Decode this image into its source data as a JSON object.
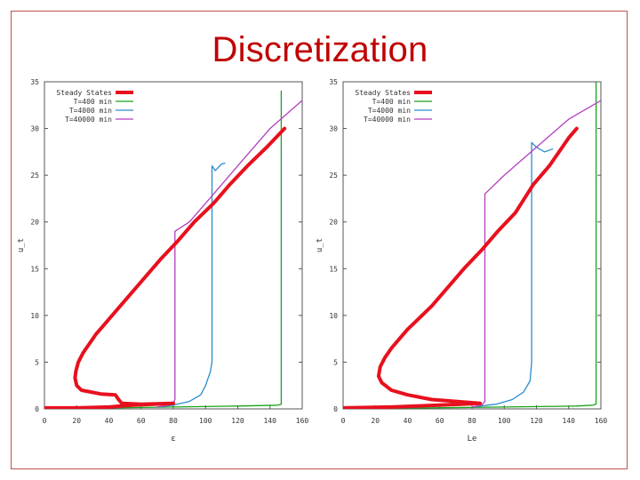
{
  "slide": {
    "title": "Discretization"
  },
  "colors": {
    "steady": "#e8101e",
    "t400": "#1aa21a",
    "t4000": "#2a8ccf",
    "t40000": "#b43fbf",
    "frame": "#c0504d",
    "title": "#c00000"
  },
  "chart_data": [
    {
      "type": "line",
      "xlabel": "ε",
      "ylabel": "u_t",
      "xlim": [
        0,
        160
      ],
      "ylim": [
        0,
        35
      ],
      "x_ticks": [
        "0",
        "20",
        "40",
        "60",
        "80",
        "100",
        "120",
        "140",
        "160"
      ],
      "y_ticks": [
        "0",
        "5",
        "10",
        "15",
        "20",
        "25",
        "30",
        "35"
      ],
      "grid": false,
      "legend": "top-left",
      "series": [
        {
          "name": "Steady States",
          "color": "#e8101e",
          "width": 4,
          "points": [
            [
              0,
              0.1
            ],
            [
              20,
              0.1
            ],
            [
              40,
              0.2
            ],
            [
              55,
              0.4
            ],
            [
              80,
              0.6
            ],
            [
              60,
              0.5
            ],
            [
              48,
              0.6
            ],
            [
              46,
              1.0
            ],
            [
              44,
              1.5
            ],
            [
              35,
              1.6
            ],
            [
              23,
              2.0
            ],
            [
              20,
              2.5
            ],
            [
              19,
              3.3
            ],
            [
              19.5,
              4.0
            ],
            [
              21,
              5.0
            ],
            [
              24,
              6.0
            ],
            [
              28,
              7.0
            ],
            [
              32,
              8.0
            ],
            [
              37,
              9.0
            ],
            [
              42,
              10.0
            ],
            [
              52,
              12.0
            ],
            [
              62,
              14.0
            ],
            [
              72,
              16.0
            ],
            [
              83,
              18.0
            ],
            [
              93,
              20.0
            ],
            [
              105,
              22.0
            ],
            [
              115,
              24.0
            ],
            [
              126,
              26.0
            ],
            [
              138,
              28.0
            ],
            [
              149,
              30.0
            ]
          ]
        },
        {
          "name": "T=400 min",
          "color": "#1aa21a",
          "width": 1.3,
          "points": [
            [
              0,
              0.05
            ],
            [
              40,
              0.1
            ],
            [
              80,
              0.2
            ],
            [
              120,
              0.3
            ],
            [
              145,
              0.4
            ],
            [
              147,
              0.5
            ],
            [
              147,
              34.0
            ]
          ]
        },
        {
          "name": "T=4000 min",
          "color": "#2a8ccf",
          "width": 1.3,
          "points": [
            [
              70,
              0.2
            ],
            [
              80,
              0.4
            ],
            [
              90,
              0.8
            ],
            [
              97,
              1.5
            ],
            [
              100,
              2.5
            ],
            [
              103,
              4.0
            ],
            [
              104,
              5.0
            ],
            [
              104,
              13.5
            ],
            [
              104,
              26.0
            ],
            [
              106,
              25.5
            ],
            [
              110,
              26.2
            ],
            [
              112,
              26.3
            ]
          ]
        },
        {
          "name": "T=40000 min",
          "color": "#b43fbf",
          "width": 1.3,
          "points": [
            [
              70,
              0.2
            ],
            [
              77,
              0.4
            ],
            [
              80,
              0.6
            ],
            [
              81,
              1.0
            ],
            [
              81,
              10.0
            ],
            [
              81,
              19.0
            ],
            [
              90,
              20.0
            ],
            [
              100,
              22.0
            ],
            [
              120,
              26.0
            ],
            [
              140,
              30.0
            ],
            [
              160,
              33.0
            ]
          ]
        }
      ]
    },
    {
      "type": "line",
      "xlabel": "Le",
      "ylabel": "u_t",
      "xlim": [
        0,
        160
      ],
      "ylim": [
        0,
        35
      ],
      "x_ticks": [
        "0",
        "20",
        "40",
        "60",
        "80",
        "100",
        "120",
        "140",
        "160"
      ],
      "y_ticks": [
        "0",
        "5",
        "10",
        "15",
        "20",
        "25",
        "30",
        "35"
      ],
      "grid": false,
      "legend": "top-left",
      "series": [
        {
          "name": "Steady States",
          "color": "#e8101e",
          "width": 4,
          "points": [
            [
              0,
              0.1
            ],
            [
              30,
              0.2
            ],
            [
              60,
              0.4
            ],
            [
              85,
              0.6
            ],
            [
              70,
              0.8
            ],
            [
              55,
              1.0
            ],
            [
              40,
              1.5
            ],
            [
              30,
              2.0
            ],
            [
              24,
              2.8
            ],
            [
              22,
              3.5
            ],
            [
              23,
              4.5
            ],
            [
              26,
              5.5
            ],
            [
              30,
              6.5
            ],
            [
              35,
              7.5
            ],
            [
              40,
              8.5
            ],
            [
              46,
              9.5
            ],
            [
              55,
              11.0
            ],
            [
              65,
              13.0
            ],
            [
              75,
              15.0
            ],
            [
              86,
              17.0
            ],
            [
              96,
              19.0
            ],
            [
              107,
              21.0
            ],
            [
              118,
              24.0
            ],
            [
              128,
              26.0
            ],
            [
              140,
              29.0
            ],
            [
              145,
              30.0
            ]
          ]
        },
        {
          "name": "T=400 min",
          "color": "#1aa21a",
          "width": 1.3,
          "points": [
            [
              0,
              0.05
            ],
            [
              50,
              0.1
            ],
            [
              100,
              0.2
            ],
            [
              145,
              0.3
            ],
            [
              155,
              0.4
            ],
            [
              157,
              0.5
            ],
            [
              157,
              35.0
            ]
          ]
        },
        {
          "name": "T=4000 min",
          "color": "#2a8ccf",
          "width": 1.3,
          "points": [
            [
              80,
              0.2
            ],
            [
              95,
              0.5
            ],
            [
              105,
              1.0
            ],
            [
              112,
              1.8
            ],
            [
              116,
              3.0
            ],
            [
              117,
              5.0
            ],
            [
              117,
              10.0
            ],
            [
              117,
              28.5
            ],
            [
              120,
              28.0
            ],
            [
              125,
              27.5
            ],
            [
              130,
              27.8
            ]
          ]
        },
        {
          "name": "T=40000 min",
          "color": "#b43fbf",
          "width": 1.3,
          "points": [
            [
              80,
              0.2
            ],
            [
              86,
              0.4
            ],
            [
              88,
              0.8
            ],
            [
              88,
              5.0
            ],
            [
              88,
              15.0
            ],
            [
              88,
              23.0
            ],
            [
              100,
              25.0
            ],
            [
              120,
              28.0
            ],
            [
              140,
              31.0
            ],
            [
              160,
              33.0
            ]
          ]
        }
      ]
    }
  ]
}
